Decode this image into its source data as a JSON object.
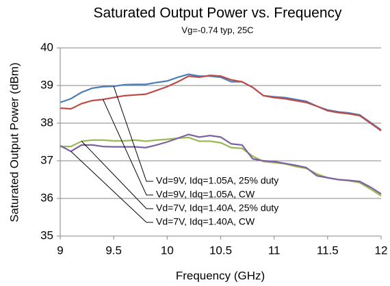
{
  "chart_data": {
    "type": "line",
    "title": "Saturated Output Power vs. Frequency",
    "subtitle": "Vg=-0.74 typ, 25C",
    "x_label": "Frequency (GHz)",
    "y_label": "Saturated Output Power (dBm)",
    "x": [
      9,
      9.1,
      9.2,
      9.3,
      9.4,
      9.5,
      9.6,
      9.7,
      9.8,
      9.9,
      10,
      10.1,
      10.2,
      10.3,
      10.4,
      10.5,
      10.6,
      10.7,
      10.8,
      10.9,
      11,
      11.1,
      11.2,
      11.3,
      11.4,
      11.5,
      11.6,
      11.7,
      11.8,
      11.9,
      12
    ],
    "series": [
      {
        "name": "Vd=9V, Idq=1.05A, 25% duty",
        "color": "#4a7ebb",
        "values": [
          38.55,
          38.65,
          38.82,
          38.93,
          38.97,
          38.98,
          39.02,
          39.03,
          39.03,
          39.08,
          39.12,
          39.22,
          39.3,
          39.25,
          39.25,
          39.22,
          39.1,
          39.1,
          38.95,
          38.73,
          38.7,
          38.68,
          38.63,
          38.58,
          38.45,
          38.35,
          38.3,
          38.27,
          38.22,
          38.02,
          37.82
        ]
      },
      {
        "name": "Vd=9V, Idq=1.05A, CW",
        "color": "#be4b48",
        "values": [
          38.4,
          38.38,
          38.52,
          38.6,
          38.63,
          38.68,
          38.73,
          38.75,
          38.77,
          38.87,
          38.97,
          39.1,
          39.25,
          39.22,
          39.27,
          39.25,
          39.15,
          39.1,
          38.95,
          38.73,
          38.68,
          38.65,
          38.6,
          38.55,
          38.45,
          38.33,
          38.28,
          38.25,
          38.2,
          38.0,
          37.8
        ]
      },
      {
        "name": "Vd=7V, Idq=1.40A, 25% duty",
        "color": "#98b954",
        "values": [
          37.38,
          37.38,
          37.52,
          37.55,
          37.55,
          37.53,
          37.53,
          37.55,
          37.52,
          37.55,
          37.57,
          37.6,
          37.62,
          37.52,
          37.52,
          37.48,
          37.35,
          37.33,
          37.12,
          36.98,
          36.95,
          36.92,
          36.85,
          36.8,
          36.65,
          36.55,
          36.5,
          36.47,
          36.42,
          36.25,
          36.07
        ]
      },
      {
        "name": "Vd=7V, Idq=1.40A, CW",
        "color": "#7d60a0",
        "values": [
          37.4,
          37.25,
          37.42,
          37.42,
          37.38,
          37.37,
          37.37,
          37.37,
          37.35,
          37.42,
          37.5,
          37.6,
          37.7,
          37.63,
          37.67,
          37.63,
          37.45,
          37.42,
          37.05,
          37.0,
          36.98,
          36.93,
          36.88,
          36.82,
          36.6,
          36.55,
          36.5,
          36.48,
          36.45,
          36.3,
          36.12
        ]
      }
    ],
    "xlim": [
      9,
      12
    ],
    "xticks": [
      9,
      9.5,
      10,
      10.5,
      11,
      11.5,
      12
    ],
    "ylim": [
      35,
      40
    ],
    "yticks": [
      35,
      36,
      37,
      38,
      39,
      40
    ],
    "grid": true
  }
}
